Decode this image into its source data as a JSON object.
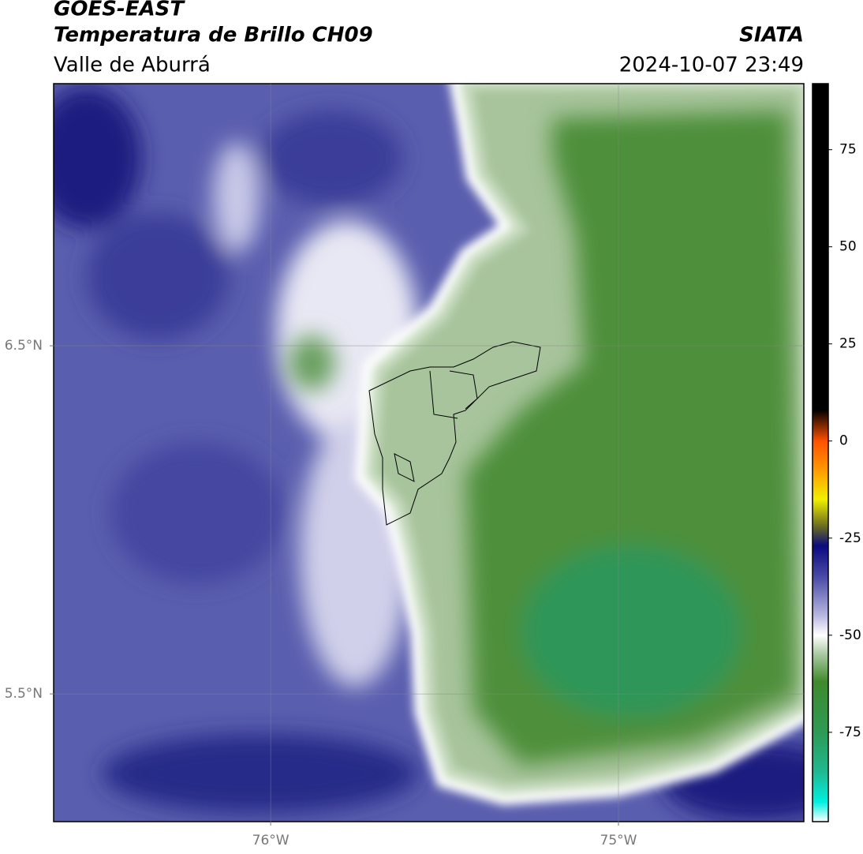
{
  "header": {
    "title": "GOES-EAST",
    "subtitle": "Temperatura de Brillo CH09",
    "source": "SIATA",
    "region": "Valle de Aburrá",
    "datetime": "2024-10-07 23:49"
  },
  "map": {
    "xlim": [
      -76.624,
      -74.467
    ],
    "ylim": [
      5.133,
      7.253
    ],
    "grid": true,
    "xticks": [
      {
        "value": -76,
        "label": "76°W"
      },
      {
        "value": -75,
        "label": "75°W"
      }
    ],
    "yticks": [
      {
        "value": 6.5,
        "label": "6.5°N"
      },
      {
        "value": 5.5,
        "label": "5.5°N"
      }
    ]
  },
  "colorbar": {
    "lim": [
      -98,
      92
    ],
    "ticks": [
      75,
      50,
      25,
      0,
      -25,
      -50,
      -75
    ],
    "stops": [
      {
        "value": -98,
        "color": "#ffffff"
      },
      {
        "value": -93,
        "color": "#00f0e0"
      },
      {
        "value": -85,
        "color": "#20b890"
      },
      {
        "value": -75,
        "color": "#2e9a55"
      },
      {
        "value": -62,
        "color": "#3f8a2c"
      },
      {
        "value": -55,
        "color": "#a8c8a0"
      },
      {
        "value": -50,
        "color": "#ffffff"
      },
      {
        "value": -45,
        "color": "#b8b8e0"
      },
      {
        "value": -35,
        "color": "#4a4aa8"
      },
      {
        "value": -27,
        "color": "#0a0a80"
      },
      {
        "value": -22,
        "color": "#6a6a20"
      },
      {
        "value": -15,
        "color": "#f0f000"
      },
      {
        "value": -8,
        "color": "#ffa000"
      },
      {
        "value": 0,
        "color": "#ff5000"
      },
      {
        "value": 8,
        "color": "#000000"
      },
      {
        "value": 92,
        "color": "#000000"
      }
    ]
  }
}
